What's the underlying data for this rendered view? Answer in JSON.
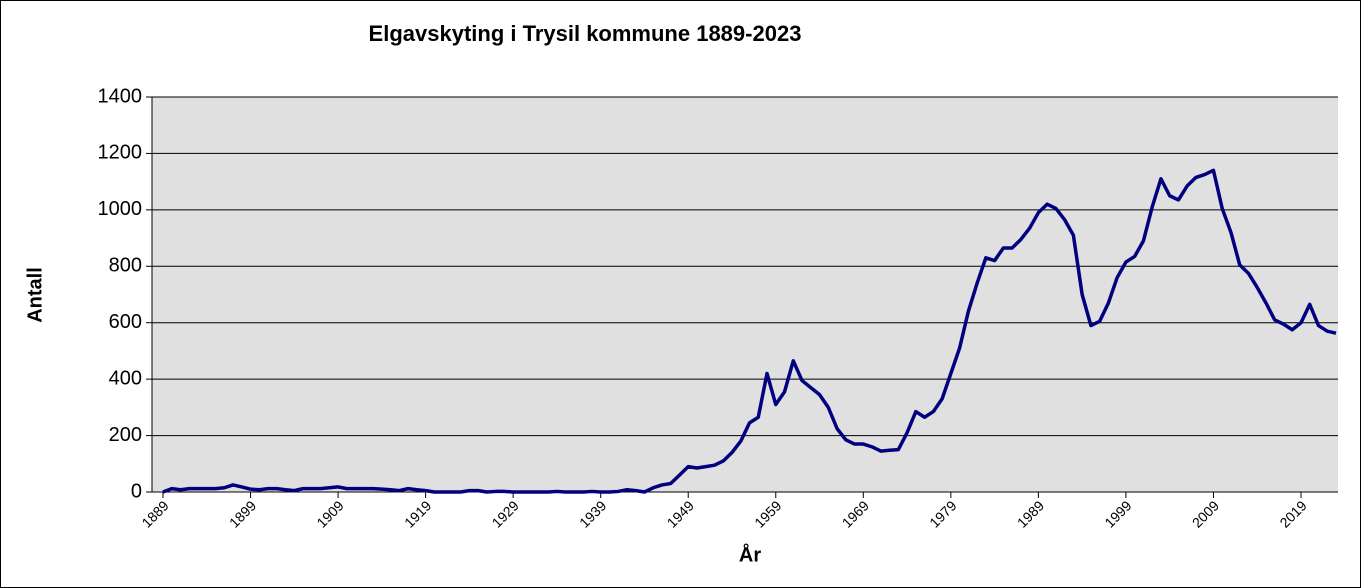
{
  "chart_data": {
    "type": "line",
    "title": "Elgavskyting i Trysil kommune 1889-2023",
    "x_label": "År",
    "y_label": "Antall",
    "x": [
      1889,
      1890,
      1891,
      1892,
      1893,
      1894,
      1895,
      1896,
      1897,
      1898,
      1899,
      1900,
      1901,
      1902,
      1903,
      1904,
      1905,
      1906,
      1907,
      1908,
      1909,
      1910,
      1911,
      1912,
      1913,
      1914,
      1915,
      1916,
      1917,
      1918,
      1919,
      1920,
      1921,
      1922,
      1923,
      1924,
      1925,
      1926,
      1927,
      1928,
      1929,
      1930,
      1931,
      1932,
      1933,
      1934,
      1935,
      1936,
      1937,
      1938,
      1939,
      1940,
      1941,
      1942,
      1943,
      1944,
      1945,
      1946,
      1947,
      1948,
      1949,
      1950,
      1951,
      1952,
      1953,
      1954,
      1955,
      1956,
      1957,
      1958,
      1959,
      1960,
      1961,
      1962,
      1963,
      1964,
      1965,
      1966,
      1967,
      1968,
      1969,
      1970,
      1971,
      1972,
      1973,
      1974,
      1975,
      1976,
      1977,
      1978,
      1979,
      1980,
      1981,
      1982,
      1983,
      1984,
      1985,
      1986,
      1987,
      1988,
      1989,
      1990,
      1991,
      1992,
      1993,
      1994,
      1995,
      1996,
      1997,
      1998,
      1999,
      2000,
      2001,
      2002,
      2003,
      2004,
      2005,
      2006,
      2007,
      2008,
      2009,
      2010,
      2011,
      2012,
      2013,
      2014,
      2015,
      2016,
      2017,
      2018,
      2019,
      2020,
      2021,
      2022,
      2023
    ],
    "series": [
      {
        "name": "Antall",
        "color": "#000080",
        "values": [
          0,
          12,
          8,
          12,
          12,
          12,
          12,
          15,
          25,
          18,
          10,
          8,
          12,
          12,
          8,
          5,
          12,
          12,
          12,
          15,
          18,
          12,
          12,
          12,
          12,
          10,
          8,
          5,
          12,
          8,
          5,
          0,
          0,
          0,
          0,
          5,
          5,
          0,
          2,
          2,
          0,
          0,
          0,
          0,
          0,
          2,
          0,
          0,
          0,
          2,
          0,
          0,
          2,
          8,
          5,
          0,
          15,
          25,
          30,
          60,
          90,
          85,
          90,
          95,
          110,
          140,
          180,
          245,
          265,
          420,
          310,
          355,
          465,
          395,
          370,
          345,
          300,
          225,
          185,
          170,
          170,
          160,
          145,
          148,
          150,
          210,
          285,
          265,
          285,
          330,
          420,
          510,
          640,
          740,
          830,
          820,
          865,
          865,
          895,
          935,
          990,
          1020,
          1005,
          965,
          910,
          700,
          590,
          605,
          670,
          760,
          815,
          835,
          890,
          1010,
          1110,
          1050,
          1035,
          1085,
          1115,
          1125,
          1140,
          1005,
          920,
          805,
          775,
          725,
          670,
          610,
          595,
          575,
          600,
          665,
          590,
          570,
          563
        ]
      }
    ],
    "xlim": [
      1889,
      2023
    ],
    "xticks": [
      1889,
      1899,
      1909,
      1919,
      1929,
      1939,
      1949,
      1959,
      1969,
      1979,
      1989,
      1999,
      2009,
      2019
    ],
    "ylim": [
      0,
      1400
    ],
    "yticks": [
      0,
      200,
      400,
      600,
      800,
      1000,
      1200,
      1400
    ],
    "grid": true
  }
}
